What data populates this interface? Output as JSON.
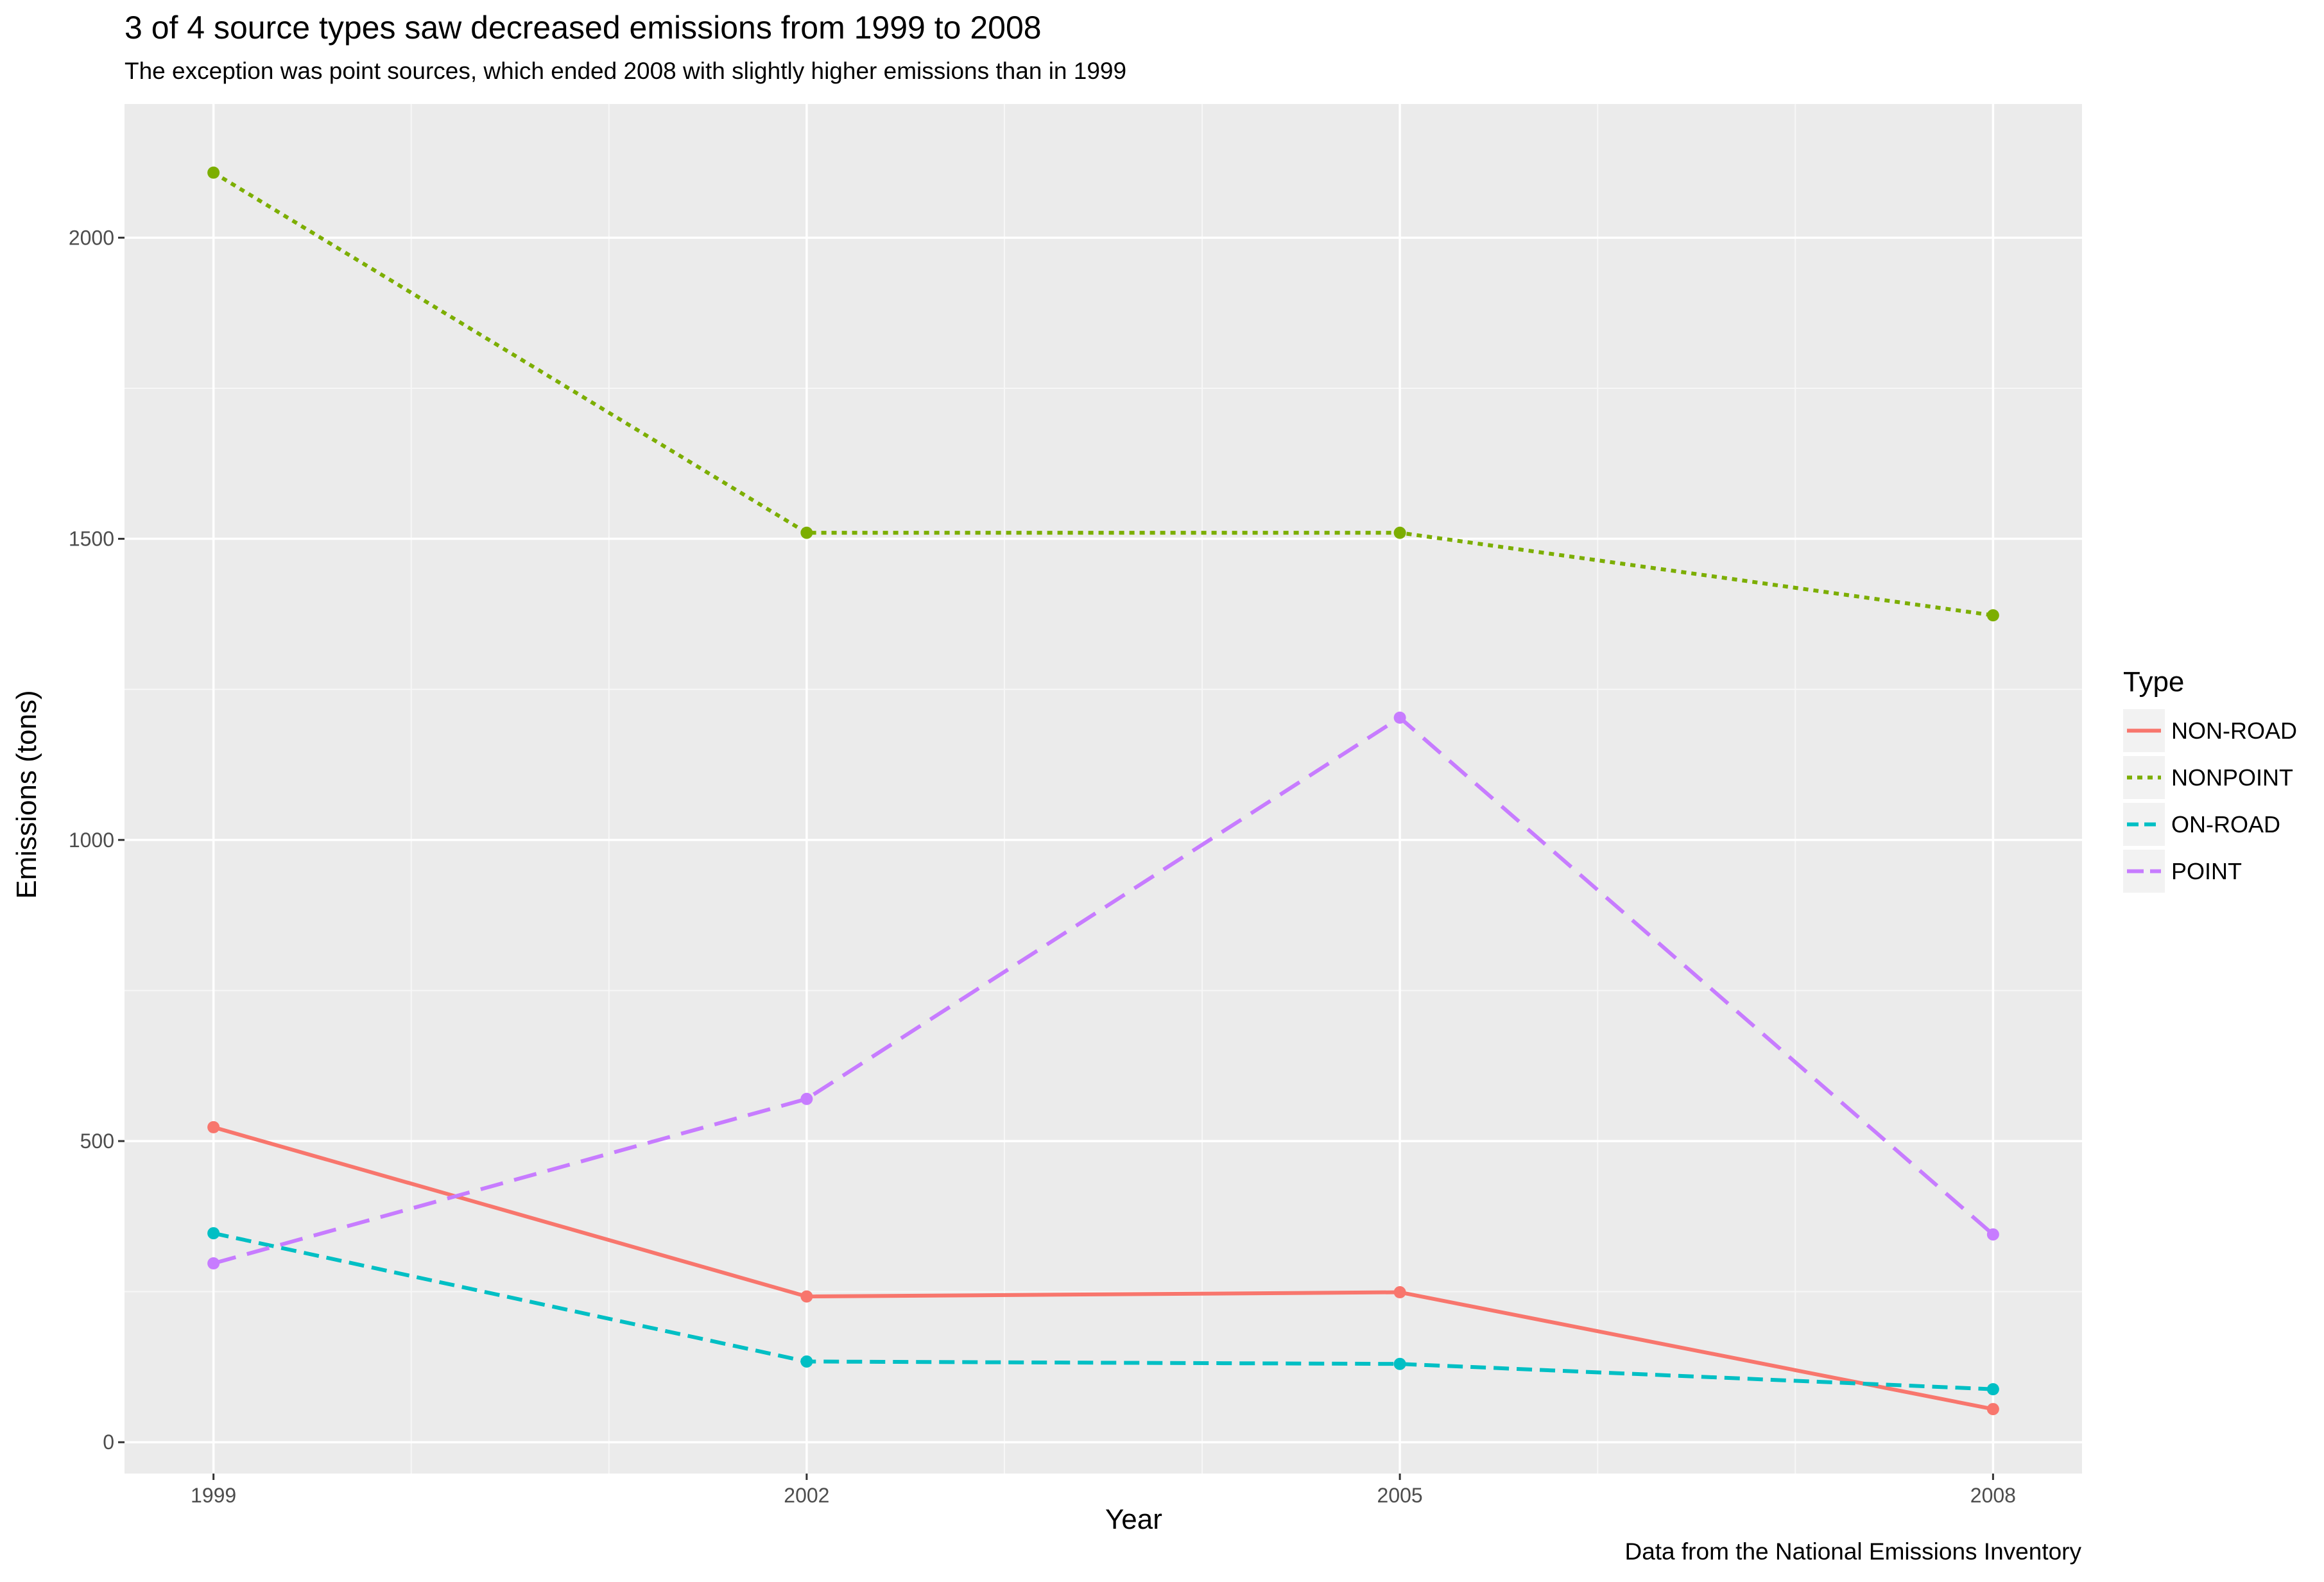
{
  "chart_data": {
    "type": "line",
    "title": "3 of 4 source types saw decreased emissions from 1999 to 2008",
    "subtitle": "The exception was point sources, which ended 2008 with slightly higher emissions than in 1999",
    "caption": "Data from the National Emissions Inventory",
    "xlabel": "Year",
    "ylabel": "Emissions (tons)",
    "x": [
      1999,
      2002,
      2005,
      2008
    ],
    "xlim": [
      1998.55,
      2008.45
    ],
    "ylim": [
      -52,
      2222
    ],
    "xticks": [
      1999,
      2002,
      2005,
      2008
    ],
    "yticks": [
      0,
      500,
      1000,
      1500,
      2000
    ],
    "grid": true,
    "legend_title": "Type",
    "legend_position": "right",
    "series": [
      {
        "name": "NON-ROAD",
        "color": "#F8766D",
        "linetype": "solid",
        "values": [
          523,
          242,
          249,
          55
        ]
      },
      {
        "name": "NONPOINT",
        "color": "#7CAE00",
        "linetype": "dotted",
        "values": [
          2108,
          1510,
          1510,
          1373
        ]
      },
      {
        "name": "ON-ROAD",
        "color": "#00BFC4",
        "linetype": "dashed",
        "values": [
          347,
          134,
          130,
          88
        ]
      },
      {
        "name": "POINT",
        "color": "#C77CFF",
        "linetype": "longdash",
        "values": [
          297,
          570,
          1203,
          345
        ]
      }
    ]
  }
}
